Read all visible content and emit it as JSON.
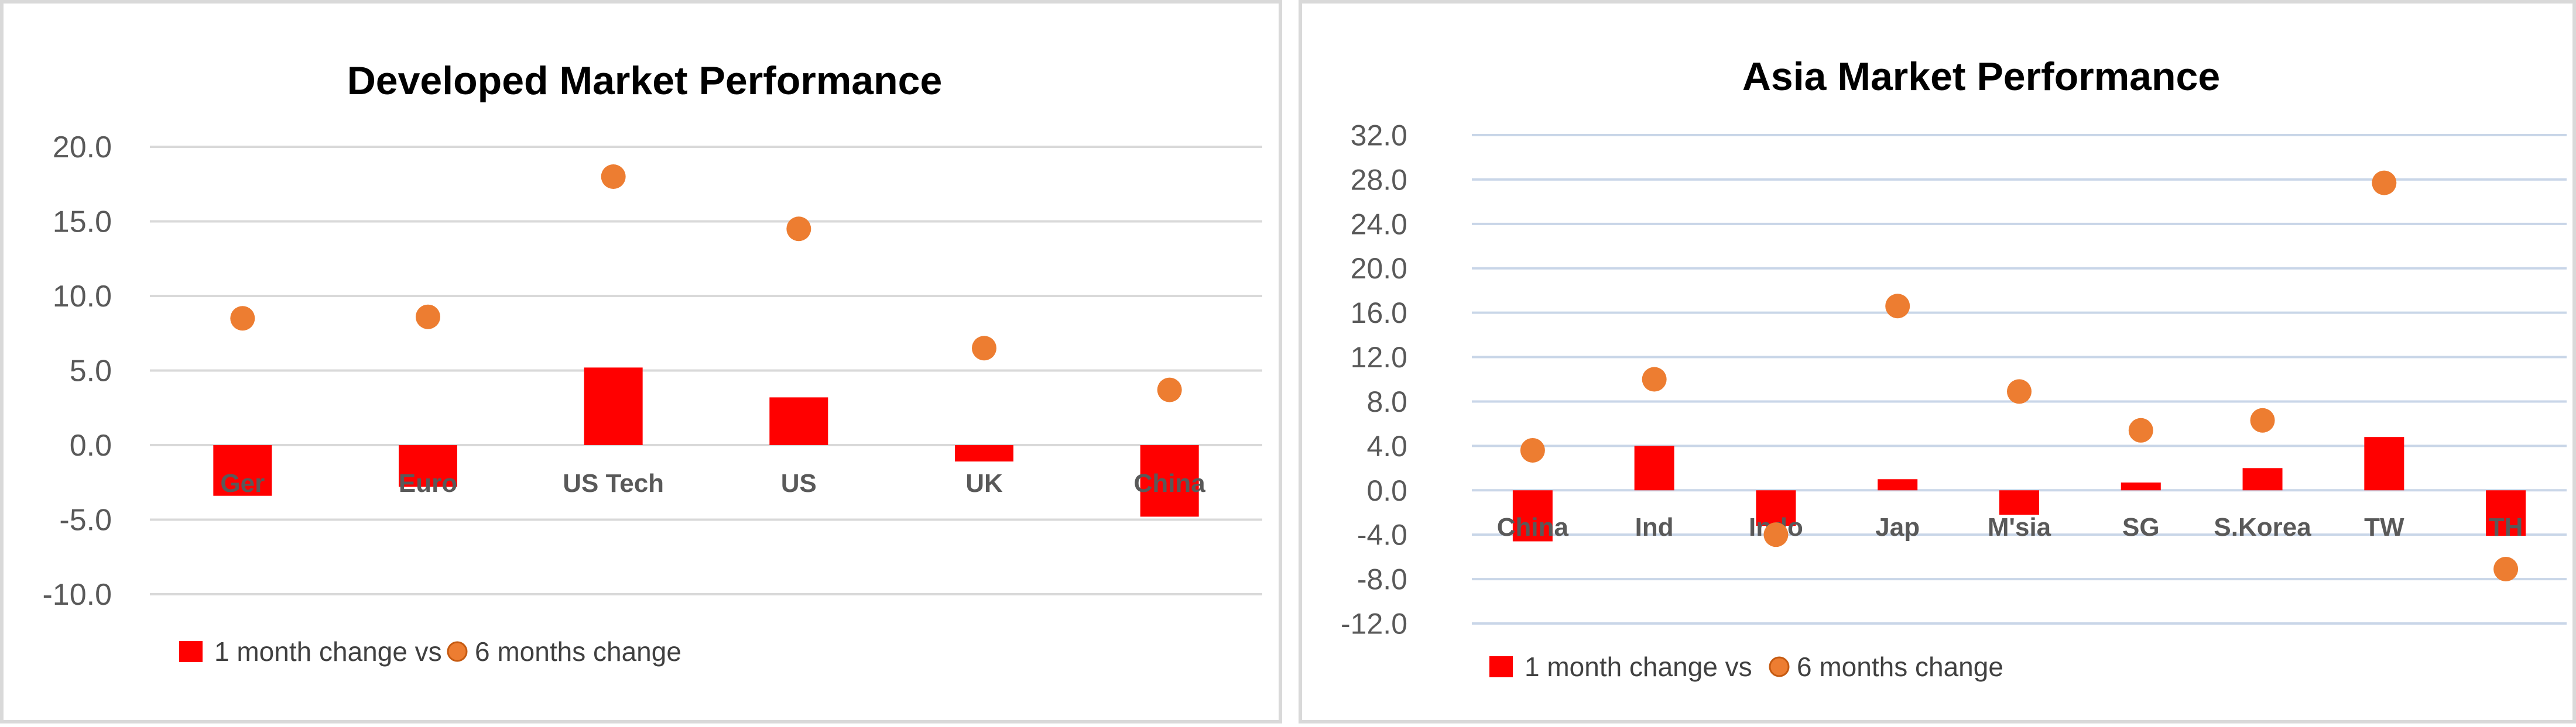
{
  "chart_data": [
    {
      "type": "bar",
      "title": "Developed Market Performance",
      "categories": [
        "Ger",
        "Euro",
        "US Tech",
        "US",
        "UK",
        "China"
      ],
      "series": [
        {
          "name": "1 month change vs",
          "type": "bar",
          "color": "#ff0000",
          "values": [
            -3.4,
            -2.8,
            5.2,
            3.2,
            -1.1,
            -4.8
          ]
        },
        {
          "name": "6 months change",
          "type": "scatter",
          "color": "#ed7d31",
          "values": [
            8.5,
            8.6,
            18.0,
            14.5,
            6.5,
            3.7
          ]
        }
      ],
      "yticks": [
        "20.0",
        "15.0",
        "10.0",
        "5.0",
        "0.0",
        "-5.0",
        "-10.0"
      ],
      "ylim": [
        -10,
        20
      ],
      "grid": true,
      "legend_position": "bottom-left"
    },
    {
      "type": "bar",
      "title": "Asia Market Performance",
      "categories": [
        "China",
        "Ind",
        "Indo",
        "Jap",
        "M'sia",
        "SG",
        "S.Korea",
        "TW",
        "TH"
      ],
      "series": [
        {
          "name": "1 month change vs",
          "type": "bar",
          "color": "#ff0000",
          "values": [
            -4.6,
            4.0,
            -3.2,
            1.0,
            -2.2,
            0.7,
            2.0,
            4.8,
            -4.1
          ]
        },
        {
          "name": "6 months change",
          "type": "scatter",
          "color": "#ed7d31",
          "values": [
            3.6,
            10.0,
            -4.0,
            16.6,
            8.9,
            5.4,
            6.3,
            27.7,
            -7.1
          ]
        }
      ],
      "yticks": [
        "32.0",
        "28.0",
        "24.0",
        "20.0",
        "16.0",
        "12.0",
        "8.0",
        "4.0",
        "0.0",
        "-4.0",
        "-8.0",
        "-12.0"
      ],
      "ylim": [
        -12,
        32
      ],
      "grid": true,
      "legend_position": "bottom-left"
    }
  ]
}
